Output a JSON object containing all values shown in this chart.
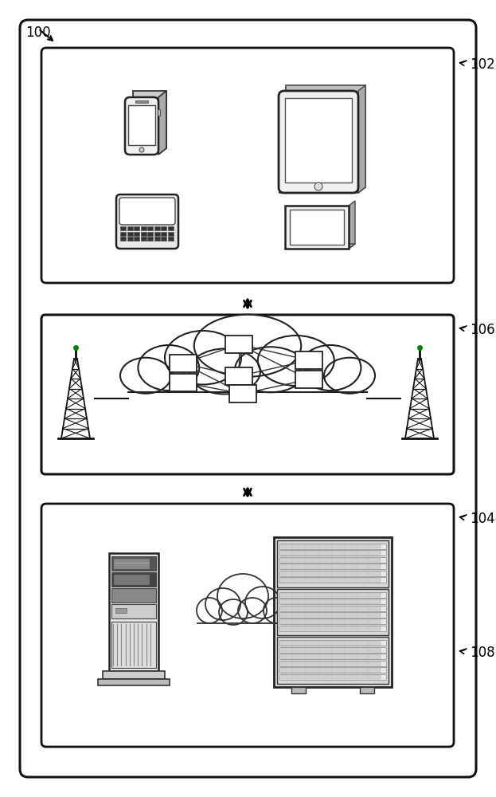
{
  "bg_color": "#ffffff",
  "outer_border_color": "#000000",
  "label_100": "100",
  "label_102": "102",
  "label_104": "104",
  "label_106": "106",
  "label_108": "108"
}
